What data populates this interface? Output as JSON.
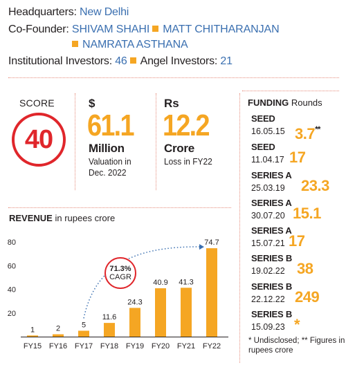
{
  "header": {
    "hq_label": "Headquarters:",
    "hq_value": "New Delhi",
    "cofounder_label": "Co-Founder:",
    "cofounders": [
      "SHIVAM SHAHI",
      "MATT CHITHARANJAN",
      "NAMRATA ASTHANA"
    ],
    "inst_label": "Institutional Investors:",
    "inst_value": "46",
    "angel_label": "Angel Investors:",
    "angel_value": "21"
  },
  "score": {
    "label": "SCORE",
    "value": "40"
  },
  "valuation": {
    "currency": "$",
    "value": "61.1",
    "unit": "Million",
    "note_1": "Valuation in",
    "note_2": "Dec. 2022"
  },
  "loss": {
    "currency": "Rs",
    "value": "12.2",
    "unit": "Crore",
    "note": "Loss in FY22"
  },
  "funding": {
    "title_bold": "FUNDING",
    "title_rest": "Rounds",
    "rounds": [
      {
        "series": "SEED",
        "date": "16.05.15",
        "amount": "3.7",
        "mark": "**"
      },
      {
        "series": "SEED",
        "date": "11.04.17",
        "amount": "17",
        "mark": ""
      },
      {
        "series": "SERIES A",
        "date": "25.03.19",
        "amount": "23.3",
        "mark": ""
      },
      {
        "series": "SERIES A",
        "date": "30.07.20",
        "amount": "15.1",
        "mark": ""
      },
      {
        "series": "SERIES A",
        "date": "15.07.21",
        "amount": "17",
        "mark": ""
      },
      {
        "series": "SERIES B",
        "date": "19.02.22",
        "amount": "38",
        "mark": ""
      },
      {
        "series": "SERIES B",
        "date": "22.12.22",
        "amount": "249",
        "mark": ""
      },
      {
        "series": "SERIES B",
        "date": "15.09.23",
        "amount": "*",
        "mark": ""
      }
    ],
    "footnote_1": "* Undisclosed; ** Figures in",
    "footnote_2": "rupees crore"
  },
  "revenue": {
    "title_bold": "REVENUE",
    "title_rest": "in rupees crore",
    "cagr_value": "71.3%",
    "cagr_label": "CAGR"
  },
  "colors": {
    "accent": "#f5a623",
    "blue": "#3a6fb0",
    "red": "#e0262b"
  },
  "chart_data": {
    "type": "bar",
    "title": "REVENUE in rupees crore",
    "categories": [
      "FY15",
      "FY16",
      "FY17",
      "FY18",
      "FY19",
      "FY20",
      "FY21",
      "FY22"
    ],
    "values": [
      1,
      2,
      5,
      11.6,
      24.3,
      40.9,
      41.3,
      74.7
    ],
    "labels": [
      "1",
      "2",
      "5",
      "11.6",
      "24.3",
      "40.9",
      "41.3",
      "74.7"
    ],
    "yticks": [
      20,
      40,
      60,
      80
    ],
    "ylim": [
      0,
      80
    ],
    "grid": false,
    "annotation": "71.3% CAGR"
  }
}
